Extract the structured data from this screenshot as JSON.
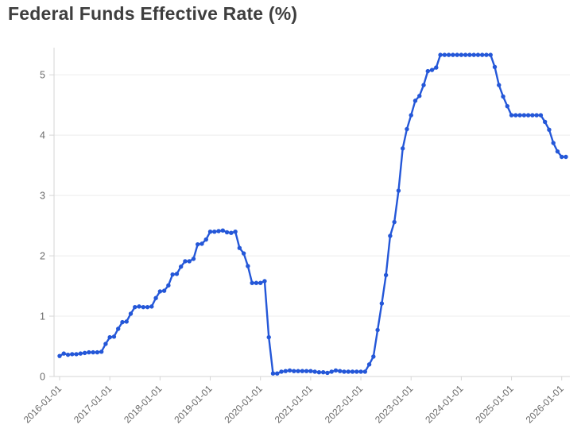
{
  "page": {
    "title": "Federal Funds Effective Rate (%)"
  },
  "chart_data": {
    "type": "line",
    "title": "Federal Funds Effective Rate (%)",
    "xlabel": "",
    "ylabel": "",
    "legend": "none",
    "grid": "horizontal",
    "marker": "circle",
    "x_frequency": "monthly",
    "x": [
      "2016-01",
      "2016-02",
      "2016-03",
      "2016-04",
      "2016-05",
      "2016-06",
      "2016-07",
      "2016-08",
      "2016-09",
      "2016-10",
      "2016-11",
      "2016-12",
      "2017-01",
      "2017-02",
      "2017-03",
      "2017-04",
      "2017-05",
      "2017-06",
      "2017-07",
      "2017-08",
      "2017-09",
      "2017-10",
      "2017-11",
      "2017-12",
      "2018-01",
      "2018-02",
      "2018-03",
      "2018-04",
      "2018-05",
      "2018-06",
      "2018-07",
      "2018-08",
      "2018-09",
      "2018-10",
      "2018-11",
      "2018-12",
      "2019-01",
      "2019-02",
      "2019-03",
      "2019-04",
      "2019-05",
      "2019-06",
      "2019-07",
      "2019-08",
      "2019-09",
      "2019-10",
      "2019-11",
      "2019-12",
      "2020-01",
      "2020-02",
      "2020-03",
      "2020-04",
      "2020-05",
      "2020-06",
      "2020-07",
      "2020-08",
      "2020-09",
      "2020-10",
      "2020-11",
      "2020-12",
      "2021-01",
      "2021-02",
      "2021-03",
      "2021-04",
      "2021-05",
      "2021-06",
      "2021-07",
      "2021-08",
      "2021-09",
      "2021-10",
      "2021-11",
      "2021-12",
      "2022-01",
      "2022-02",
      "2022-03",
      "2022-04",
      "2022-05",
      "2022-06",
      "2022-07",
      "2022-08",
      "2022-09",
      "2022-10",
      "2022-11",
      "2022-12",
      "2023-01",
      "2023-02",
      "2023-03",
      "2023-04",
      "2023-05",
      "2023-06",
      "2023-07",
      "2023-08",
      "2023-09",
      "2023-10",
      "2023-11",
      "2023-12",
      "2024-01",
      "2024-02",
      "2024-03",
      "2024-04",
      "2024-05",
      "2024-06",
      "2024-07",
      "2024-08",
      "2024-09",
      "2024-10",
      "2024-11",
      "2024-12",
      "2025-01",
      "2025-02",
      "2025-03",
      "2025-04",
      "2025-05",
      "2025-06",
      "2025-07",
      "2025-08",
      "2025-09",
      "2025-10",
      "2025-11",
      "2025-12",
      "2026-01",
      "2026-02"
    ],
    "y": [
      0.34,
      0.38,
      0.36,
      0.37,
      0.37,
      0.38,
      0.39,
      0.4,
      0.4,
      0.4,
      0.41,
      0.54,
      0.65,
      0.66,
      0.79,
      0.9,
      0.91,
      1.04,
      1.15,
      1.16,
      1.15,
      1.15,
      1.16,
      1.3,
      1.41,
      1.42,
      1.51,
      1.69,
      1.7,
      1.82,
      1.91,
      1.91,
      1.95,
      2.19,
      2.2,
      2.27,
      2.4,
      2.4,
      2.41,
      2.42,
      2.39,
      2.38,
      2.4,
      2.13,
      2.04,
      1.83,
      1.55,
      1.55,
      1.55,
      1.58,
      0.65,
      0.05,
      0.05,
      0.08,
      0.09,
      0.1,
      0.09,
      0.09,
      0.09,
      0.09,
      0.09,
      0.08,
      0.07,
      0.07,
      0.06,
      0.08,
      0.1,
      0.09,
      0.08,
      0.08,
      0.08,
      0.08,
      0.08,
      0.08,
      0.2,
      0.33,
      0.77,
      1.21,
      1.68,
      2.33,
      2.56,
      3.08,
      3.78,
      4.1,
      4.33,
      4.57,
      4.65,
      4.83,
      5.06,
      5.08,
      5.12,
      5.33,
      5.33,
      5.33,
      5.33,
      5.33,
      5.33,
      5.33,
      5.33,
      5.33,
      5.33,
      5.33,
      5.33,
      5.33,
      5.13,
      4.83,
      4.64,
      4.48,
      4.33,
      4.33,
      4.33,
      4.33,
      4.33,
      4.33,
      4.33,
      4.33,
      4.22,
      4.09,
      3.87,
      3.73,
      3.64,
      3.64
    ],
    "x_tick_labels": [
      "2016-01-01",
      "2017-01-01",
      "2018-01-01",
      "2019-01-01",
      "2020-01-01",
      "2021-01-01",
      "2022-01-01",
      "2023-01-01",
      "2024-01-01",
      "2025-01-01",
      "2026-01-01"
    ],
    "y_ticks": [
      0,
      1,
      2,
      3,
      4,
      5
    ],
    "ylim": [
      0,
      5.45
    ],
    "colors": {
      "line": "#2457d8",
      "marker": "#2457d8",
      "title": "#3e3e3e",
      "tick_labels": "#6a6a6a",
      "gridline": "#ececec",
      "axis_line": "#d6d6d6",
      "background": "#ffffff"
    }
  }
}
